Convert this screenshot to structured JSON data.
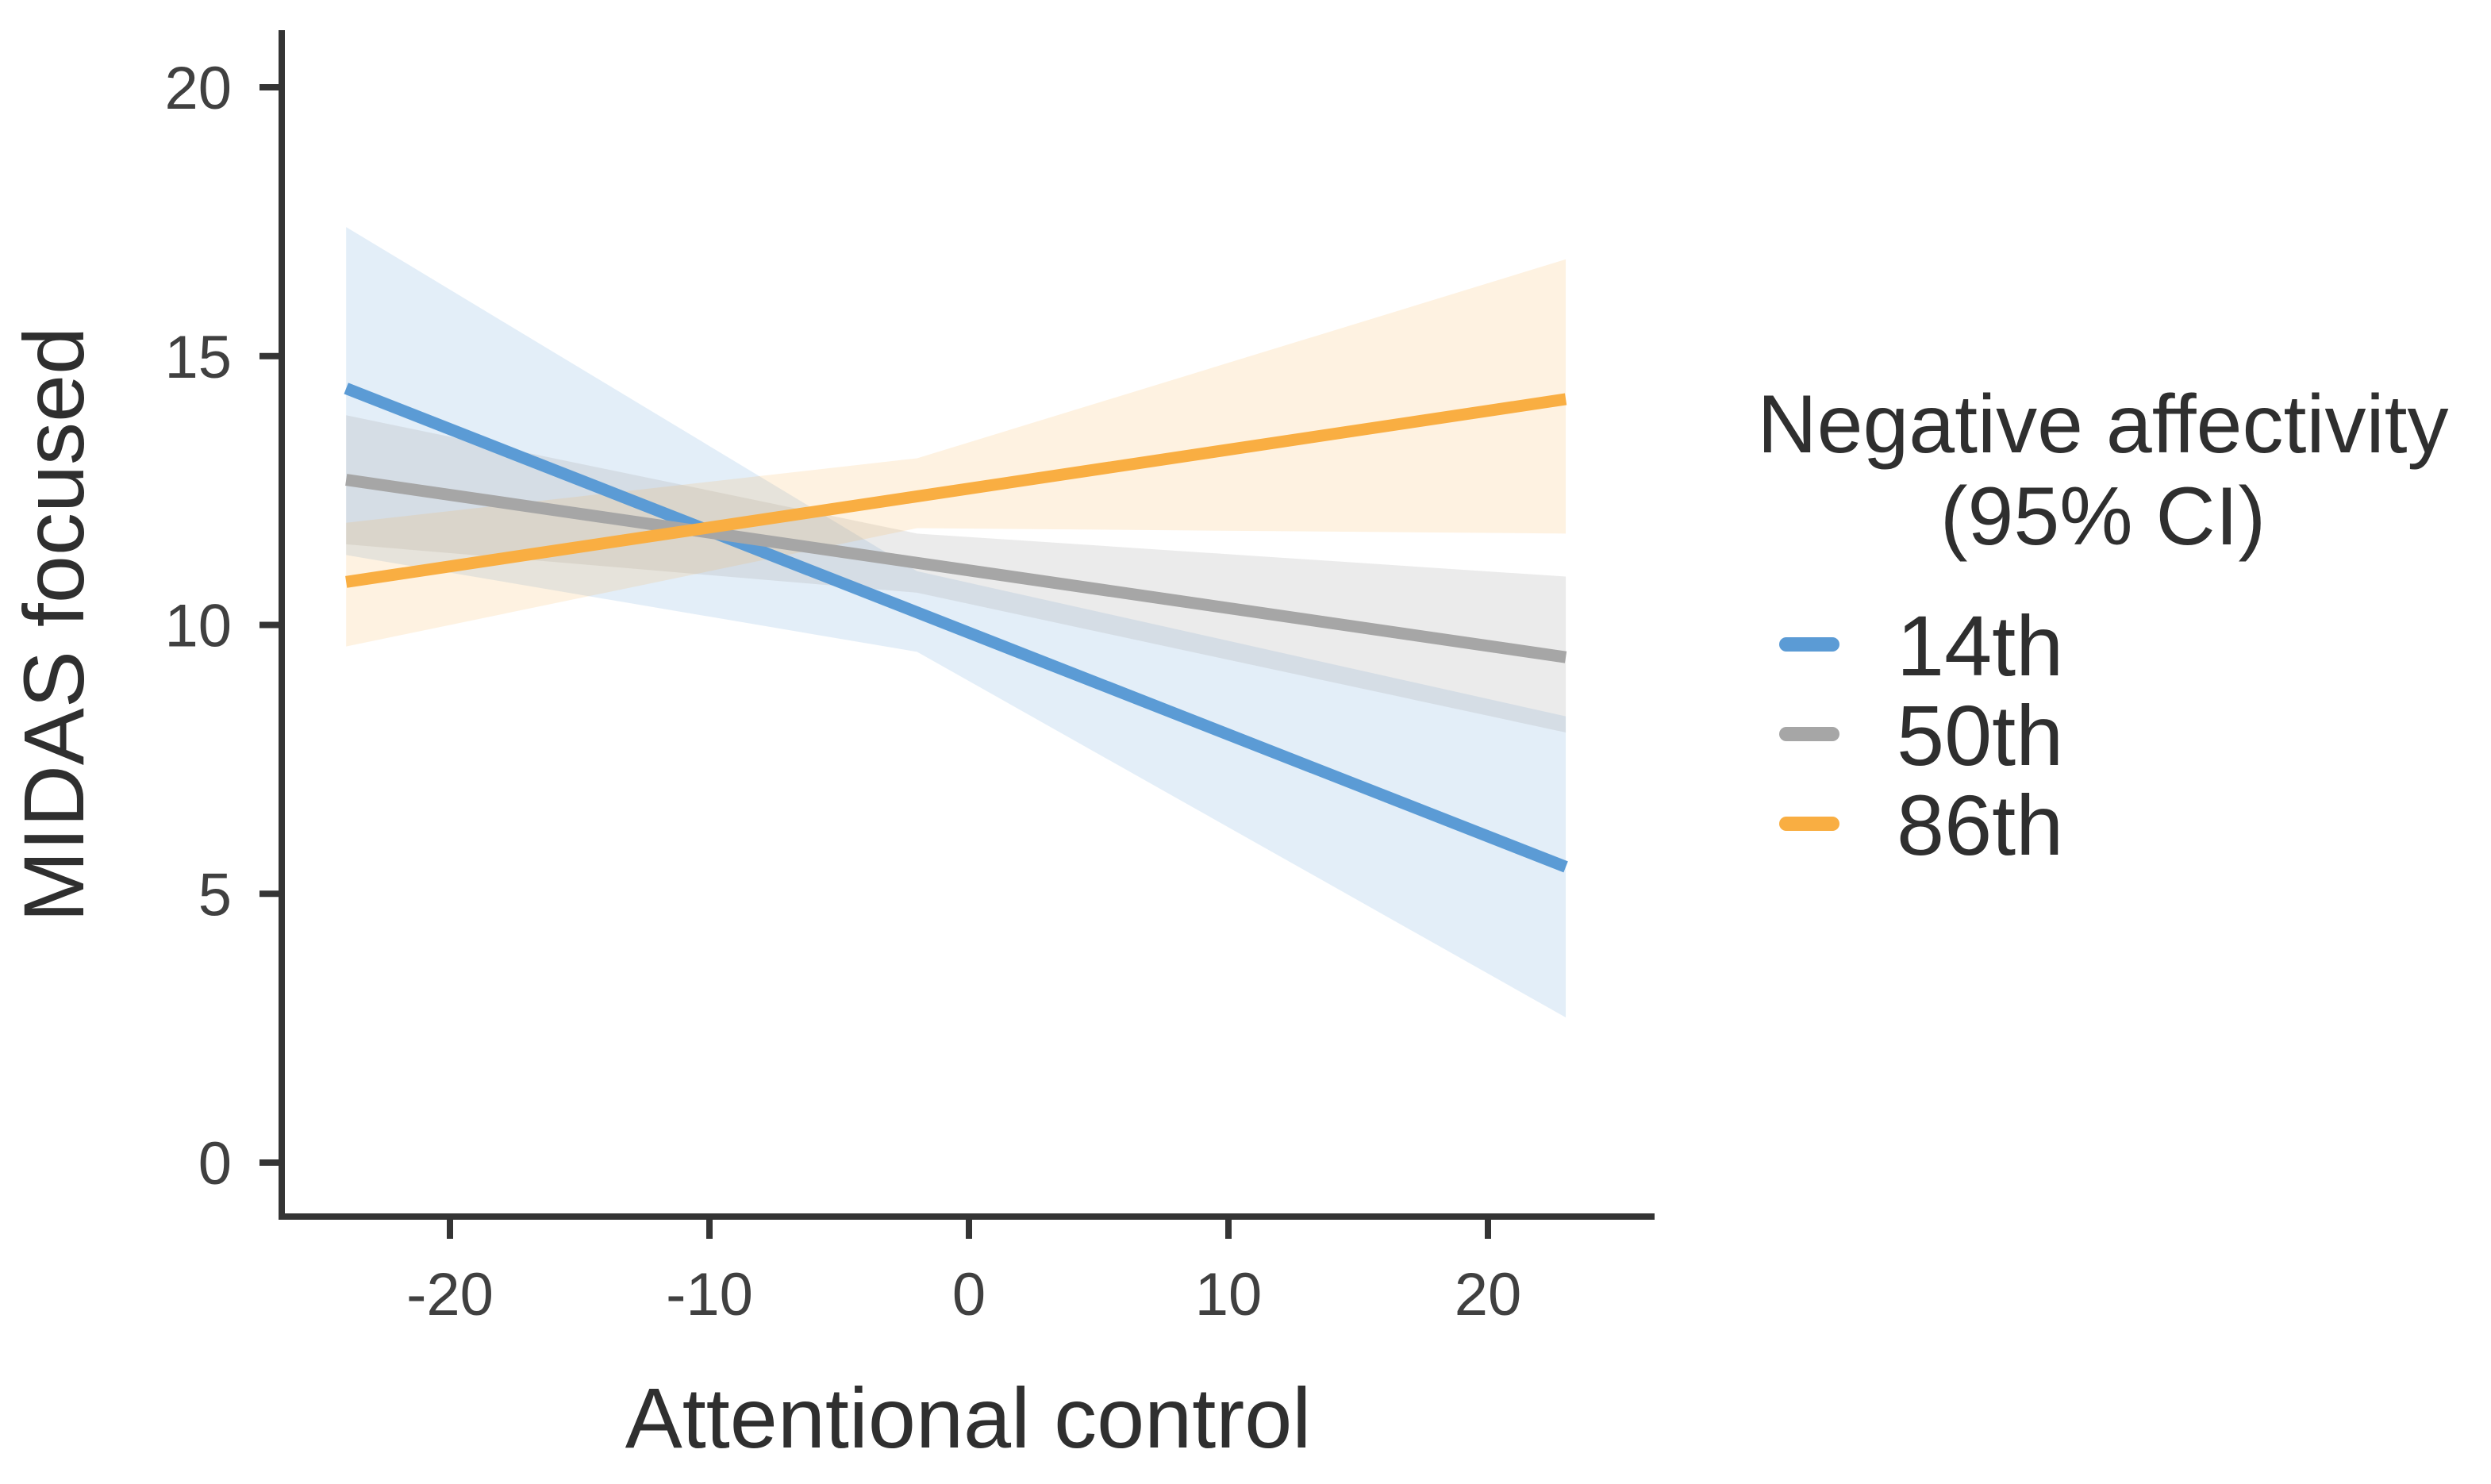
{
  "chart_data": {
    "type": "line",
    "title": "",
    "xlabel": "Attentional control",
    "ylabel": "MIDAS focused",
    "x_ticks": [
      -20,
      -10,
      0,
      10,
      20
    ],
    "y_ticks": [
      0,
      5,
      10,
      15,
      20
    ],
    "xlim": [
      -26.4,
      26.4
    ],
    "ylim": [
      -1,
      21
    ],
    "grid": "off",
    "legend_position": "right",
    "legend": {
      "title_line1": "Negative affectivity",
      "title_line2": "(95% CI)"
    },
    "series": [
      {
        "name": "14th",
        "color": "#5B9BD5",
        "fill": "rgba(91,155,213,0.17)",
        "x": [
          -24,
          23
        ],
        "y": [
          14.4,
          5.5
        ],
        "ci_upper": [
          [
            -24,
            17.4
          ],
          [
            -2,
            11.0
          ],
          [
            23,
            8.3
          ]
        ],
        "ci_lower": [
          [
            -24,
            11.3
          ],
          [
            -2,
            9.5
          ],
          [
            23,
            2.7
          ]
        ]
      },
      {
        "name": "50th",
        "color": "#A6A6A6",
        "fill": "rgba(163,163,163,0.22)",
        "x": [
          -24,
          23
        ],
        "y": [
          12.7,
          9.4
        ],
        "ci_upper": [
          [
            -24,
            13.9
          ],
          [
            -2,
            11.7
          ],
          [
            23,
            10.9
          ]
        ],
        "ci_lower": [
          [
            -24,
            11.5
          ],
          [
            -2,
            10.6
          ],
          [
            23,
            8.0
          ]
        ]
      },
      {
        "name": "86th",
        "color": "#F9AE42",
        "fill": "rgba(249,174,66,0.16)",
        "x": [
          -24,
          23
        ],
        "y": [
          10.8,
          14.2
        ],
        "ci_upper": [
          [
            -24,
            11.9
          ],
          [
            -2,
            13.1
          ],
          [
            23,
            16.8
          ]
        ],
        "ci_lower": [
          [
            -24,
            9.6
          ],
          [
            -2,
            11.8
          ],
          [
            23,
            11.7
          ]
        ]
      }
    ]
  }
}
